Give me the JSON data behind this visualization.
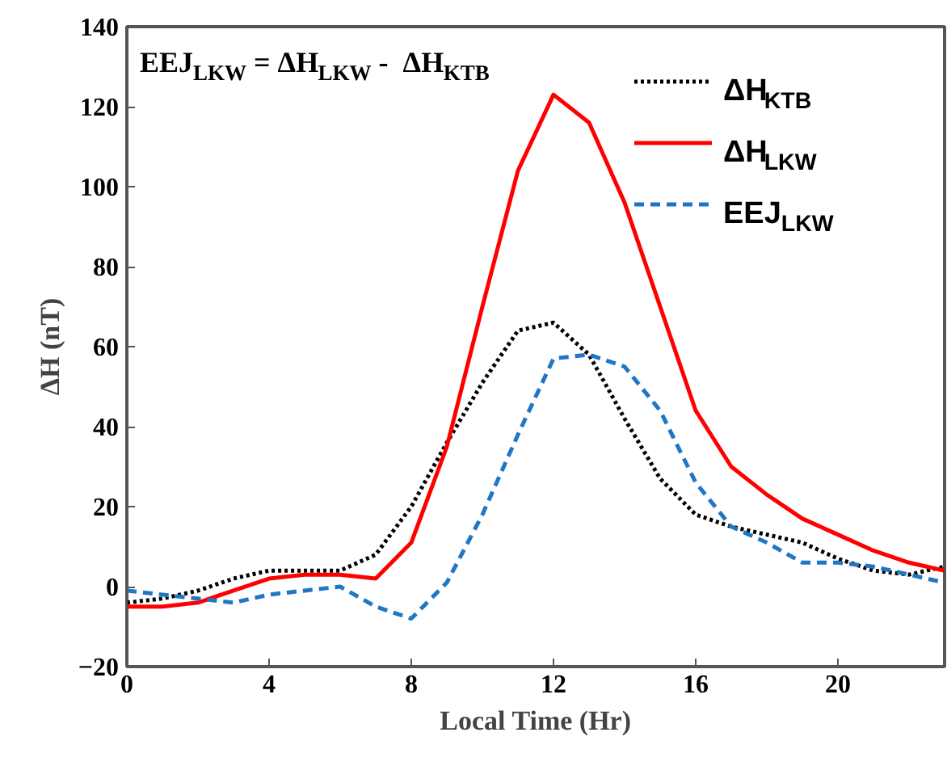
{
  "chart_data": {
    "type": "line",
    "xlabel": "Local Time (Hr)",
    "ylabel": "ΔH (nT)",
    "annotations": [
      "EEJ$_{LKW}$ = ΔH$_{LKW}$ -  ΔH$_{KTB}$"
    ],
    "x": [
      0,
      1,
      2,
      3,
      4,
      5,
      6,
      7,
      8,
      9,
      10,
      11,
      12,
      13,
      14,
      15,
      16,
      17,
      18,
      19,
      20,
      21,
      22,
      23
    ],
    "series": [
      {
        "name": "ΔH$_{KTB}$",
        "color": "#000000",
        "line_style": "dotted",
        "values": [
          -4,
          -3,
          -1,
          2,
          4,
          4,
          4,
          8,
          20,
          36,
          51,
          64,
          66,
          58,
          42,
          27,
          18,
          15,
          13,
          11,
          7,
          4,
          3,
          5
        ]
      },
      {
        "name": "ΔH$_{LKW}$",
        "color": "#ff0000",
        "line_style": "solid",
        "values": [
          -5,
          -5,
          -4,
          -1,
          2,
          3,
          3,
          2,
          11,
          35,
          70,
          104,
          123,
          116,
          96,
          70,
          44,
          30,
          23,
          17,
          13,
          9,
          6,
          4
        ]
      },
      {
        "name": "EEJ$_{LKW}$",
        "color": "#1f77c4",
        "line_style": "dashed",
        "values": [
          -1,
          -2,
          -3,
          -4,
          -2,
          -1,
          0,
          -5,
          -8,
          1,
          18,
          38,
          57,
          58,
          55,
          44,
          26,
          15,
          11,
          6,
          6,
          5,
          3,
          1
        ]
      }
    ],
    "xlim": [
      0,
      23
    ],
    "ylim": [
      -20,
      140
    ],
    "xticks": [
      0,
      4,
      8,
      12,
      16,
      20
    ],
    "yticks": [
      -20,
      0,
      20,
      40,
      60,
      80,
      100,
      120,
      140
    ],
    "grid": false,
    "legend": "top right",
    "marker": "none"
  }
}
